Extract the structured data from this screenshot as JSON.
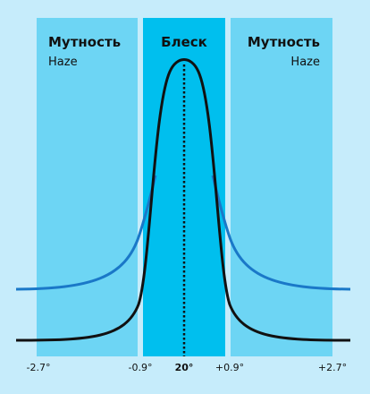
{
  "bands": [
    {
      "title": "Мутность",
      "subtitle": "Haze"
    },
    {
      "title": "Блеск"
    },
    {
      "title": "Мутность",
      "subtitle": "Haze"
    }
  ],
  "axis_labels": [
    "-2.7°",
    "-0.9°",
    "20°",
    "+0.9°",
    "+2.7°"
  ]
}
